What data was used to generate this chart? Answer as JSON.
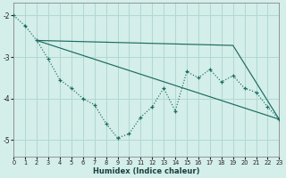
{
  "xlabel": "Humidex (Indice chaleur)",
  "bg_color": "#d4eeea",
  "grid_color": "#b0d8d2",
  "line_color": "#1a6b60",
  "xlim": [
    0,
    23
  ],
  "ylim": [
    -5.4,
    -1.7
  ],
  "yticks": [
    -5,
    -4,
    -3,
    -2
  ],
  "xticks": [
    0,
    1,
    2,
    3,
    4,
    5,
    6,
    7,
    8,
    9,
    10,
    11,
    12,
    13,
    14,
    15,
    16,
    17,
    18,
    19,
    20,
    21,
    22,
    23
  ],
  "line1_x": [
    0,
    1,
    2,
    3,
    4,
    5,
    6,
    7,
    8,
    9,
    10,
    11,
    12,
    13,
    14,
    15,
    16,
    17,
    18,
    19,
    20,
    21,
    22,
    23
  ],
  "line1_y": [
    -2.0,
    -2.25,
    -2.6,
    -3.05,
    -3.55,
    -3.75,
    -4.0,
    -4.15,
    -4.6,
    -4.95,
    -4.85,
    -4.45,
    -4.2,
    -3.75,
    -4.3,
    -3.35,
    -3.5,
    -3.3,
    -3.6,
    -3.45,
    -3.75,
    -3.85,
    -4.2,
    -4.5
  ],
  "line2_x": [
    2,
    23
  ],
  "line2_y": [
    -2.6,
    -4.5
  ],
  "line3_x": [
    2,
    19,
    23
  ],
  "line3_y": [
    -2.6,
    -2.72,
    -4.5
  ]
}
